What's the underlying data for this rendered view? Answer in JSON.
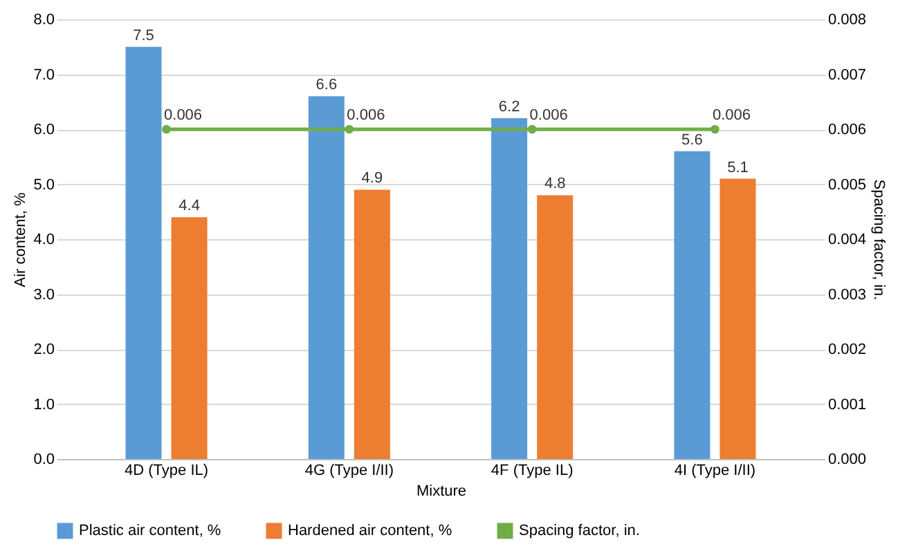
{
  "chart_data": {
    "type": "bar",
    "xlabel": "Mixture",
    "ylabel": "Air content, %",
    "y2label": "Spacing factor, in.",
    "categories": [
      "4D (Type IL)",
      "4G (Type I/II)",
      "4F (Type IL)",
      "4I (Type I/II)"
    ],
    "series": [
      {
        "name": "Plastic air content, %",
        "color": "#5b9bd5",
        "values": [
          7.5,
          6.6,
          6.2,
          5.6
        ]
      },
      {
        "name": "Hardened air content, %",
        "color": "#ed7d31",
        "values": [
          4.4,
          4.9,
          4.8,
          5.1
        ]
      },
      {
        "name": "Spacing factor, in.",
        "color": "#70ad47",
        "type": "line",
        "axis": "y2",
        "marker": "circle",
        "values": [
          0.006,
          0.006,
          0.006,
          0.006
        ]
      }
    ],
    "ylim": [
      0,
      8
    ],
    "yticks": [
      {
        "value": 0,
        "label": "0.0"
      },
      {
        "value": 1,
        "label": "1.0"
      },
      {
        "value": 2,
        "label": "2.0"
      },
      {
        "value": 3,
        "label": "3.0"
      },
      {
        "value": 4,
        "label": "4.0"
      },
      {
        "value": 5,
        "label": "5.0"
      },
      {
        "value": 6,
        "label": "6.0"
      },
      {
        "value": 7,
        "label": "7.0"
      },
      {
        "value": 8,
        "label": "8.0"
      }
    ],
    "y2lim": [
      0,
      0.008
    ],
    "y2ticks": [
      {
        "value": 0,
        "label": "0.000"
      },
      {
        "value": 0.001,
        "label": "0.001"
      },
      {
        "value": 0.002,
        "label": "0.002"
      },
      {
        "value": 0.003,
        "label": "0.003"
      },
      {
        "value": 0.004,
        "label": "0.004"
      },
      {
        "value": 0.005,
        "label": "0.005"
      },
      {
        "value": 0.006,
        "label": "0.006"
      },
      {
        "value": 0.007,
        "label": "0.007"
      },
      {
        "value": 0.008,
        "label": "0.008"
      }
    ],
    "data_labels": true,
    "grid": "y",
    "legend": "bottom"
  }
}
